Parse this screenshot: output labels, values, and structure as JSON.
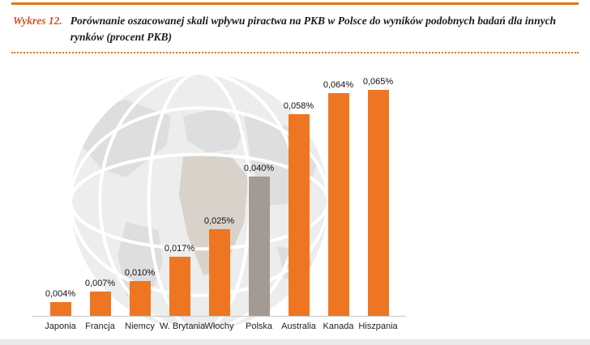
{
  "header": {
    "kicker": "Wykres 12.",
    "title": "Porównanie oszacowanej skali wpływu piractwa na PKB w Polsce do wyników podobnych badań dla innych rynków (procent PKB)"
  },
  "colors": {
    "accent_orange": "#ee7623",
    "highlight_gray": "#a39b93",
    "kicker_orange": "#d9531e",
    "rule_orange": "#e87511",
    "baseline_gray": "#c8c8c8"
  },
  "chart_data": {
    "type": "bar",
    "categories": [
      "Japonia",
      "Francja",
      "Niemcy",
      "W. Brytania",
      "Włochy",
      "Polska",
      "Australia",
      "Kanada",
      "Hiszpania"
    ],
    "values": [
      0.004,
      0.007,
      0.01,
      0.017,
      0.025,
      0.04,
      0.058,
      0.064,
      0.065
    ],
    "value_labels": [
      "0,004%",
      "0,007%",
      "0,010%",
      "0,017%",
      "0,025%",
      "0,040%",
      "0,058%",
      "0,064%",
      "0,065%"
    ],
    "highlight_category": "Polska",
    "title": "Porównanie oszacowanej skali wpływu piractwa na PKB w Polsce do wyników podobnych badań dla innych rynków (procent PKB)",
    "xlabel": "",
    "ylabel": "procent PKB",
    "ylim": [
      0,
      0.065
    ],
    "grid": false,
    "legend": false,
    "background_decoration": "globe-watermark"
  }
}
